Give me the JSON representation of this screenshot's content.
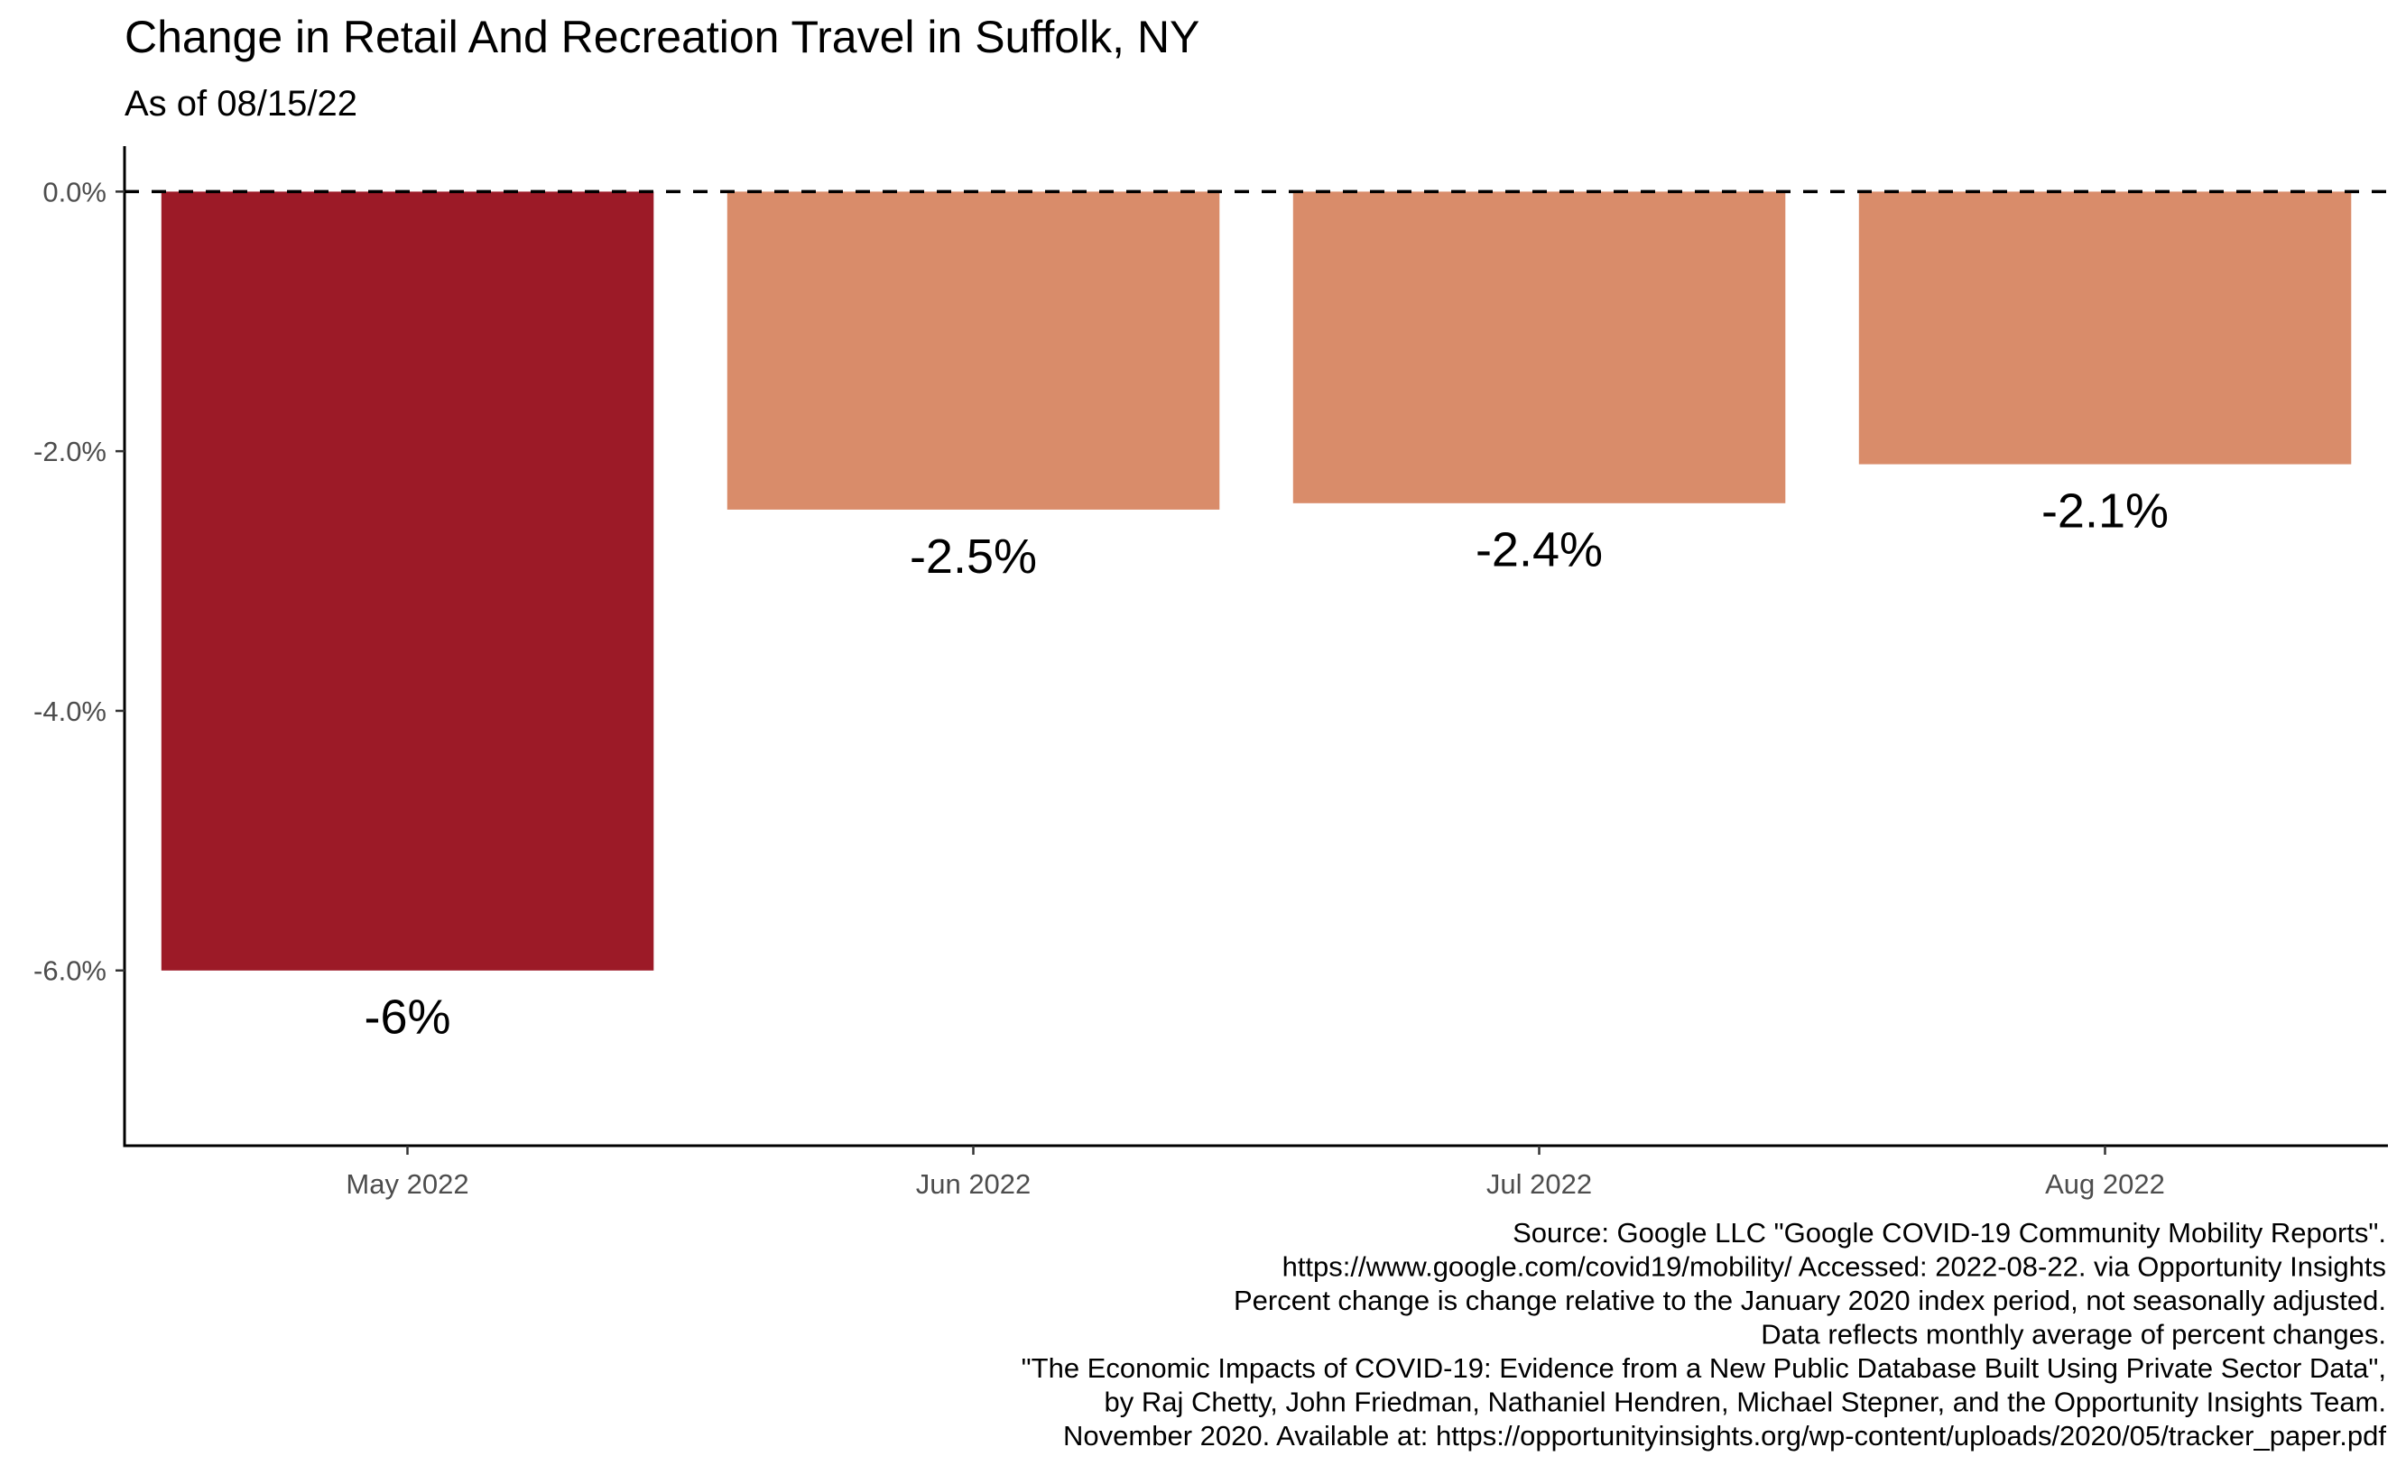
{
  "chart_data": {
    "type": "bar",
    "title": "Change in Retail And Recreation Travel in Suffolk, NY",
    "subtitle": "As of 08/15/22",
    "xlabel": "",
    "ylabel": "",
    "categories": [
      "May 2022",
      "Jun 2022",
      "Jul 2022",
      "Aug 2022"
    ],
    "values": [
      -6.0,
      -2.45,
      -2.4,
      -2.1
    ],
    "value_labels": [
      "-6%",
      "-2.5%",
      "-2.4%",
      "-2.1%"
    ],
    "bar_colors": [
      "#9c1a27",
      "#d98c6a",
      "#d98c6a",
      "#d98c6a"
    ],
    "ylim": [
      -7.35,
      0.35
    ],
    "y_ticks": [
      0,
      -2,
      -4,
      -6
    ],
    "y_tick_labels": [
      "0.0%",
      "-2.0%",
      "-4.0%",
      "-6.0%"
    ],
    "reference_line": {
      "value": 0,
      "style": "dashed",
      "color": "#000000"
    },
    "grid": false,
    "legend": "none",
    "caption": [
      "Source: Google LLC \"Google COVID-19 Community Mobility Reports\".",
      "https://www.google.com/covid19/mobility/ Accessed: 2022-08-22. via Opportunity Insights",
      "Percent change is change relative to the January 2020 index period, not seasonally adjusted.",
      "Data reflects monthly average of percent changes.",
      "\"The Economic Impacts of COVID-19: Evidence from a New Public Database Built Using Private Sector Data\",",
      "by Raj Chetty, John Friedman, Nathaniel Hendren, Michael Stepner, and the Opportunity Insights Team.",
      "November 2020. Available at: https://opportunityinsights.org/wp-content/uploads/2020/05/tracker_paper.pdf"
    ]
  }
}
